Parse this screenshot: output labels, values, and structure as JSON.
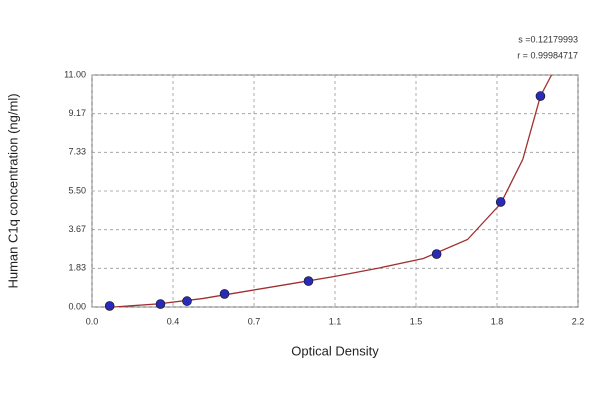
{
  "chart_data": {
    "type": "scatter",
    "xlabel": "Optical Density",
    "ylabel": "Human C1q concentration (ng/ml)",
    "annotations": [
      "s =0.12179993",
      "r = 0.99984717"
    ],
    "x": [
      0.08,
      0.31,
      0.43,
      0.6,
      0.98,
      1.56,
      1.85,
      2.03
    ],
    "values": [
      0.05,
      0.14,
      0.28,
      0.62,
      1.23,
      2.51,
      4.98,
      10.0
    ],
    "color": "#2a2ab8",
    "curve": {
      "x": [
        0.1,
        0.3,
        0.5,
        0.7,
        0.9,
        1.1,
        1.3,
        1.5,
        1.7,
        1.85,
        1.95,
        2.03,
        2.08
      ],
      "y": [
        0.0,
        0.15,
        0.4,
        0.75,
        1.1,
        1.45,
        1.85,
        2.3,
        3.2,
        4.9,
        7.0,
        10.0,
        11.0
      ],
      "color": "#a03030"
    },
    "xlim": [
      0,
      2.2
    ],
    "ylim": [
      0,
      11
    ],
    "xticks": [
      {
        "value": 0,
        "label": "0.0"
      },
      {
        "value": 0.3667,
        "label": "0.4"
      },
      {
        "value": 0.7333,
        "label": "0.7"
      },
      {
        "value": 1.1,
        "label": "1.1"
      },
      {
        "value": 1.4667,
        "label": "1.5"
      },
      {
        "value": 1.8333,
        "label": "1.8"
      },
      {
        "value": 2.2,
        "label": "2.2"
      }
    ],
    "yticks": [
      {
        "value": 0,
        "label": "0.00"
      },
      {
        "value": 1.8333,
        "label": "1.83"
      },
      {
        "value": 3.6667,
        "label": "3.67"
      },
      {
        "value": 5.5,
        "label": "5.50"
      },
      {
        "value": 7.3333,
        "label": "7.33"
      },
      {
        "value": 9.1667,
        "label": "9.17"
      },
      {
        "value": 11,
        "label": "11.00"
      }
    ],
    "grid": true
  }
}
